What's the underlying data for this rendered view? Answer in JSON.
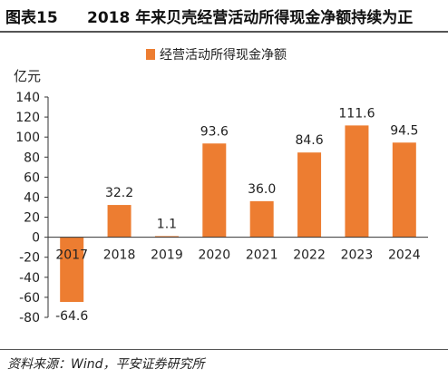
{
  "header": {
    "figure_number": "图表15",
    "title": "2018 年来贝壳经营活动所得现金净额持续为正"
  },
  "footer": {
    "source": "资料来源：Wind，平安证券研究所"
  },
  "chart_data": {
    "type": "bar",
    "unit_label": "亿元",
    "categories": [
      "2017",
      "2018",
      "2019",
      "2020",
      "2021",
      "2022",
      "2023",
      "2024"
    ],
    "series": [
      {
        "name": "经营活动所得现金净额",
        "values": [
          -64.6,
          32.2,
          1.1,
          93.6,
          36.0,
          84.6,
          111.6,
          94.5
        ],
        "labels": [
          "-64.6",
          "32.2",
          "1.1",
          "93.6",
          "36.0",
          "84.6",
          "111.6",
          "94.5"
        ],
        "color": "#ED7D31"
      }
    ],
    "ylim": [
      -80,
      140
    ],
    "yticks": [
      140,
      120,
      100,
      80,
      60,
      40,
      20,
      0,
      -20,
      -40,
      -60,
      -80
    ],
    "legend_position": "top",
    "grid": false
  }
}
